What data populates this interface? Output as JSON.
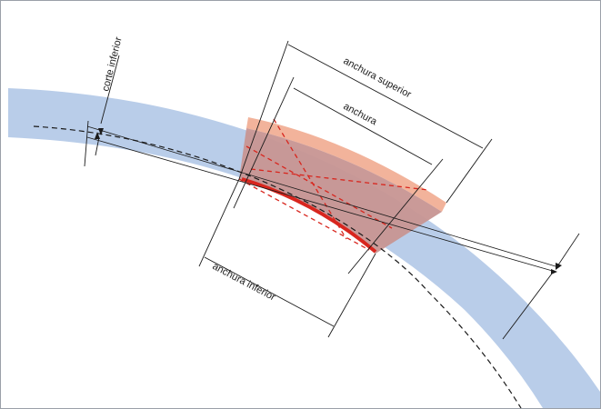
{
  "diagram": {
    "labels": {
      "cut": "corte inferior",
      "top_width": "anchura superior",
      "width": "anchura",
      "bottom_width": "anchura inferior"
    },
    "colors": {
      "band": "#b9cde9",
      "cut_region": "#c79592",
      "top_excess": "#f2b39b",
      "bottom_edge": "#d8261e",
      "dashed_red": "#d8261e",
      "lines": "#1a1a1a"
    }
  }
}
